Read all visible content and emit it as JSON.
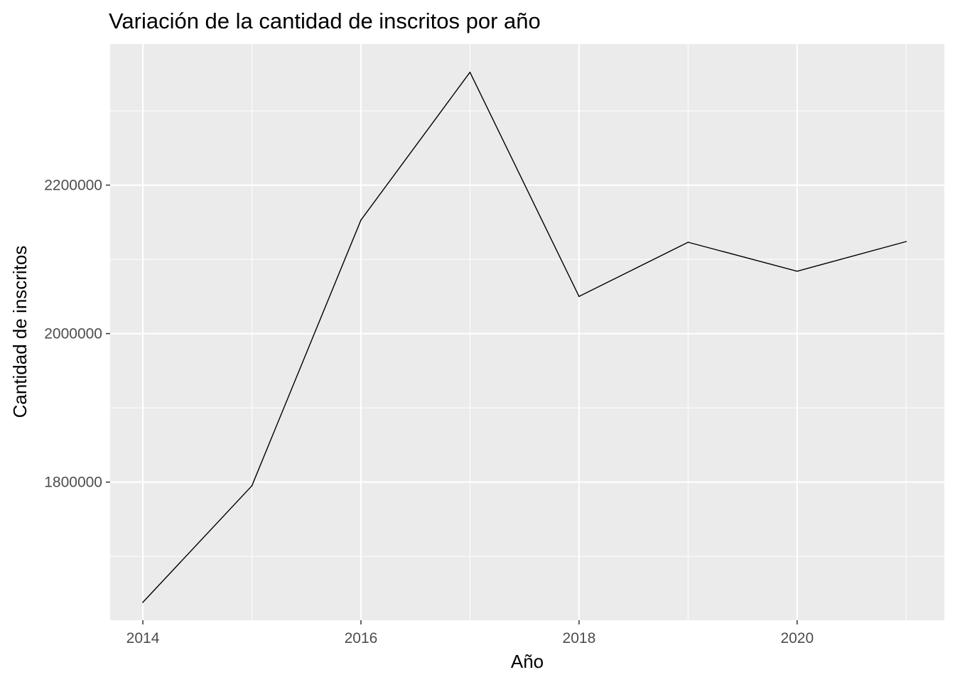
{
  "chart_data": {
    "type": "line",
    "title": "Variación de la cantidad de inscritos por año",
    "xlabel": "Año",
    "ylabel": "Cantidad de inscritos",
    "x": [
      2014,
      2015,
      2016,
      2017,
      2018,
      2019,
      2020,
      2021
    ],
    "series": [
      {
        "values": [
          1638000,
          1795000,
          2153000,
          2352000,
          2050000,
          2123000,
          2084000,
          2124000
        ]
      }
    ],
    "xlim": [
      2013.7,
      2021.35
    ],
    "ylim": [
      1614000,
      2390000
    ],
    "x_ticks": [
      2014,
      2016,
      2018,
      2020
    ],
    "x_tick_labels": [
      "2014",
      "2016",
      "2018",
      "2020"
    ],
    "x_minor_ticks": [
      2015,
      2017,
      2019,
      2021
    ],
    "y_ticks": [
      1800000,
      2000000,
      2200000
    ],
    "y_tick_labels": [
      "1800000",
      "2000000",
      "2200000"
    ],
    "y_minor_ticks": [
      1700000,
      1900000,
      2100000,
      2300000
    ],
    "grid": true,
    "legend": "none",
    "colors": {
      "panel_background": "#EBEBEB",
      "grid": "#FFFFFF",
      "line": "#000000",
      "tick_text": "#4D4D4D",
      "tick_mark": "#333333"
    }
  }
}
